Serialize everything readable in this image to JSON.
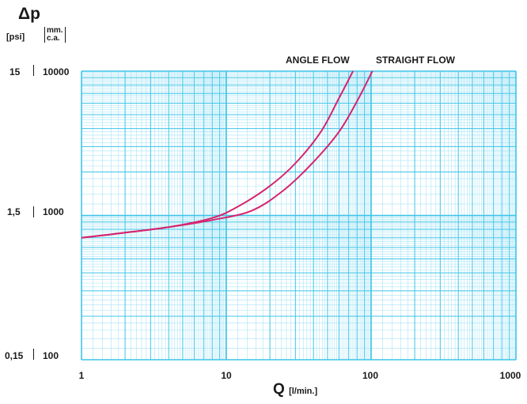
{
  "chart_data": {
    "type": "line",
    "title": "Δp",
    "xlabel": "Q",
    "xlabel_unit": "[l/min.]",
    "ylabel": "Δp",
    "y_units": {
      "left": "[psi]",
      "right_top": "mm.",
      "right_bottom": "c.a."
    },
    "x_scale": "log",
    "y_scale": "log",
    "xlim": [
      1,
      1000
    ],
    "ylim_mm": [
      100,
      10000
    ],
    "x_ticks": [
      "1",
      "10",
      "100",
      "1000"
    ],
    "y_ticks": [
      {
        "psi": "15",
        "mm": "10000"
      },
      {
        "psi": "1,5",
        "mm": "1000"
      },
      {
        "psi": "0,15",
        "mm": "100"
      }
    ],
    "grid": true,
    "series": [
      {
        "name": "ANGLE FLOW",
        "x": [
          1,
          2,
          4,
          8,
          12,
          20,
          30,
          45,
          60,
          75
        ],
        "y": [
          700,
          760,
          830,
          960,
          1150,
          1600,
          2300,
          3800,
          6500,
          10000
        ]
      },
      {
        "name": "STRAIGHT FLOW",
        "x": [
          1,
          2,
          4,
          8,
          15,
          25,
          40,
          60,
          80,
          102
        ],
        "y": [
          700,
          760,
          830,
          930,
          1080,
          1500,
          2350,
          3800,
          6200,
          10000
        ]
      }
    ],
    "colors": {
      "grid": "#3cc4e8",
      "grid_minor": "#a8e4f6",
      "curve": "#d6246e"
    }
  }
}
